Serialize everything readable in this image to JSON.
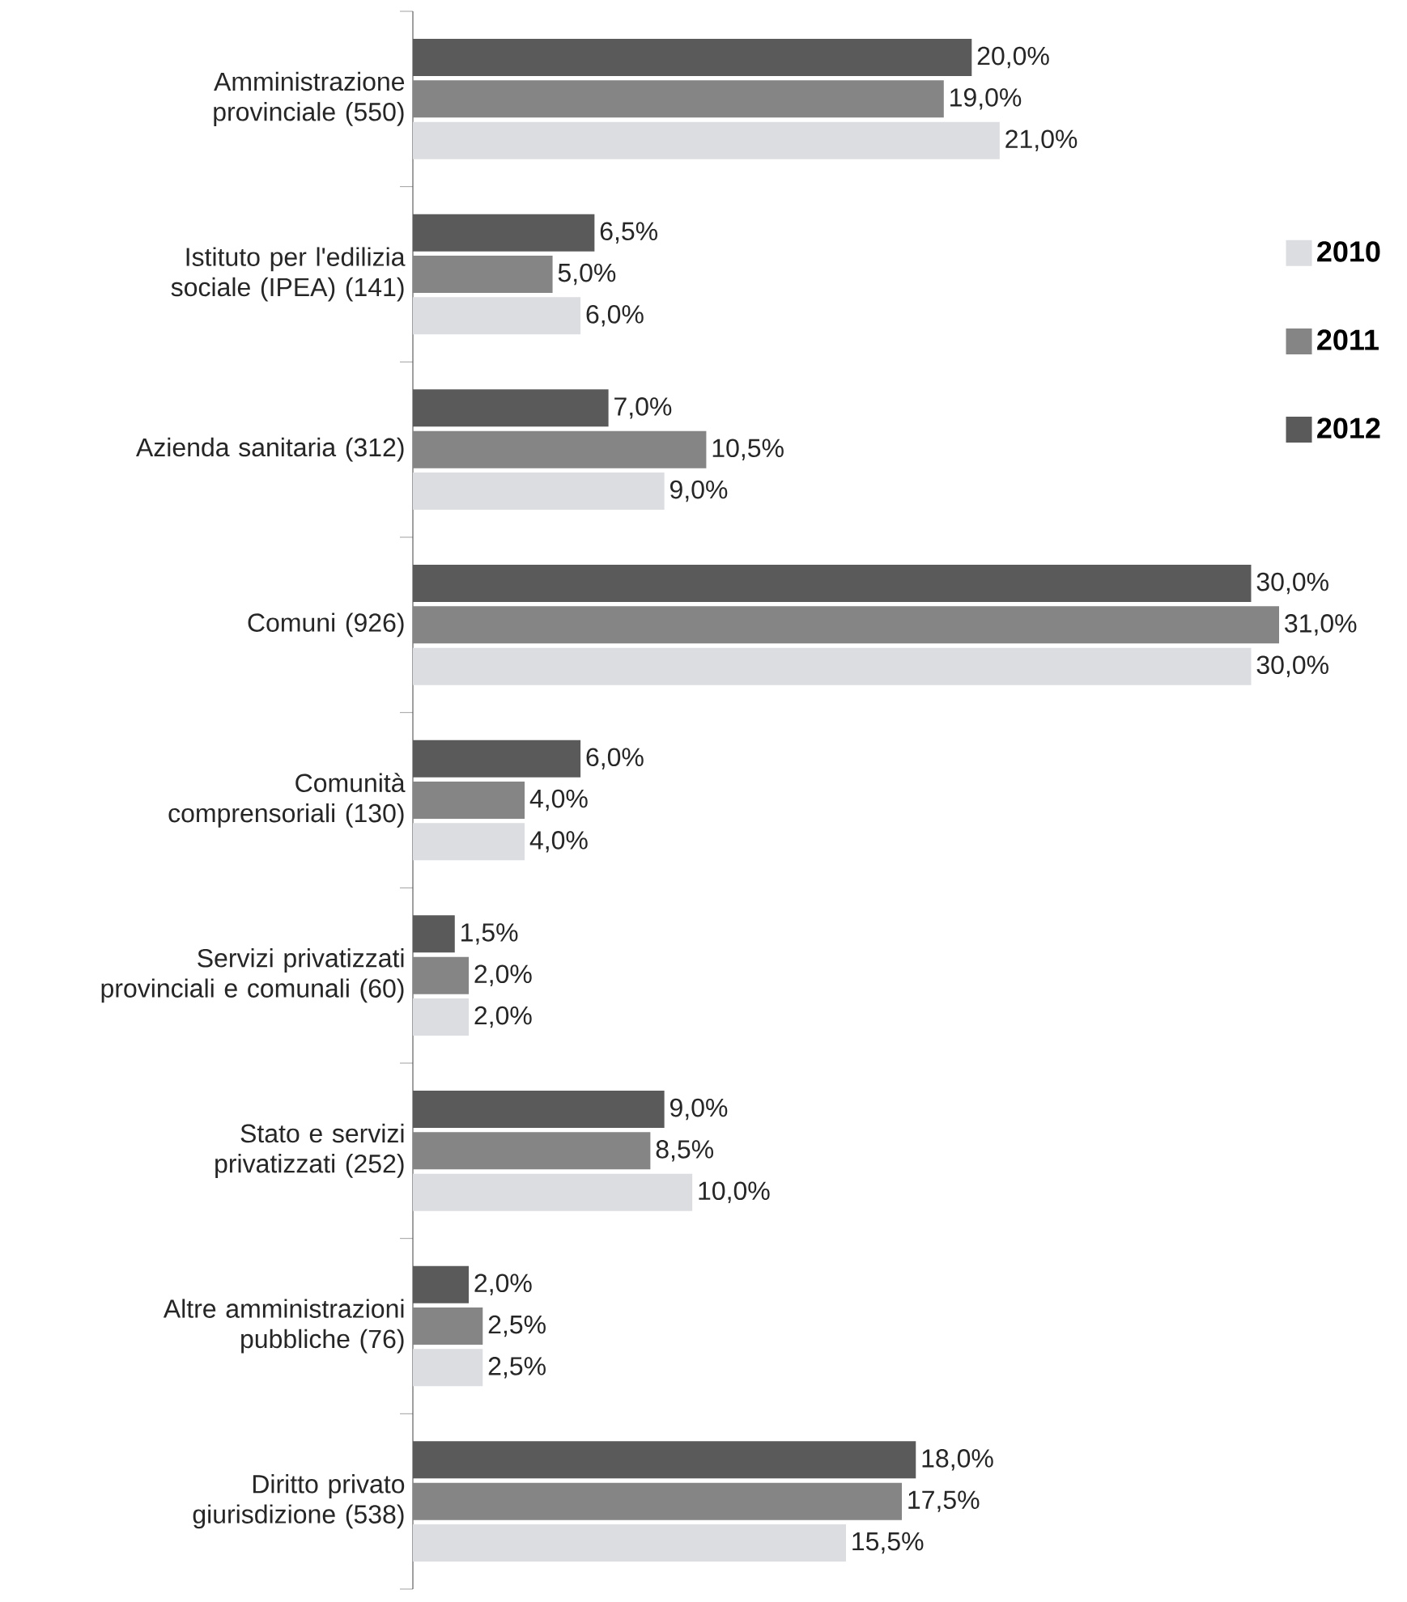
{
  "chart_data": {
    "type": "bar",
    "orientation": "horizontal",
    "legend": "right",
    "categories": [
      "Amministrazione provinciale (550)",
      "Istituto per l'edilizia sociale (IPEA) (141)",
      "Azienda sanitaria (312)",
      "Comuni (926)",
      "Comunità comprensoriali (130)",
      "Servizi privatizzati provinciali e comunali (60)",
      "Stato e servizi privatizzati (252)",
      "Altre amministrazioni pubbliche (76)",
      "Diritto privato giurisdizione (538)"
    ],
    "series": [
      {
        "name": "2010",
        "color": "#dcdde1",
        "values": [
          21.0,
          6.0,
          9.0,
          30.0,
          4.0,
          2.0,
          10.0,
          2.5,
          15.5
        ],
        "value_labels": [
          "21,0%",
          "6,0%",
          "9,0%",
          "30,0%",
          "4,0%",
          "2,0%",
          "10,0%",
          "2,5%",
          "15,5%"
        ]
      },
      {
        "name": "2011",
        "color": "#858585",
        "values": [
          19.0,
          5.0,
          10.5,
          31.0,
          4.0,
          2.0,
          8.5,
          2.5,
          17.5
        ],
        "value_labels": [
          "19,0%",
          "5,0%",
          "10,5%",
          "31,0%",
          "4,0%",
          "2,0%",
          "8,5%",
          "2,5%",
          "17,5%"
        ]
      },
      {
        "name": "2012",
        "color": "#5a5a5a",
        "values": [
          20.0,
          6.5,
          7.0,
          30.0,
          6.0,
          1.5,
          9.0,
          2.0,
          18.0
        ],
        "value_labels": [
          "20,0%",
          "6,5%",
          "7,0%",
          "30,0%",
          "6,0%",
          "1,5%",
          "9,0%",
          "2,0%",
          "18,0%"
        ]
      }
    ]
  }
}
